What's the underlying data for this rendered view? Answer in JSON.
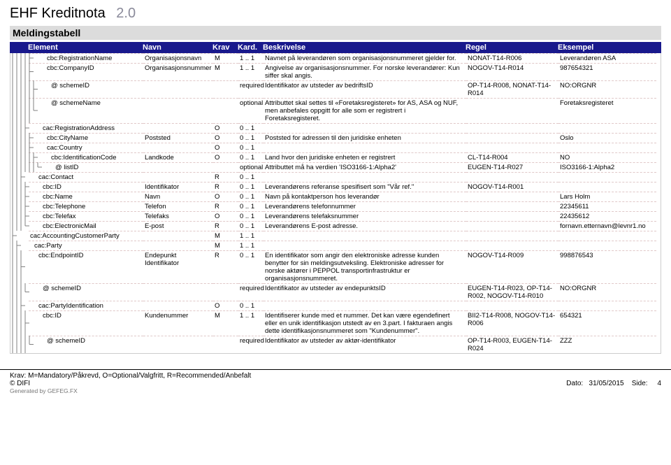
{
  "doc": {
    "title": "EHF Kreditnota",
    "version": "2.0"
  },
  "section": "Meldingstabell",
  "columns": {
    "element": "Element",
    "navn": "Navn",
    "krav": "Krav",
    "kard": "Kard.",
    "besk": "Beskrivelse",
    "regel": "Regel",
    "eks": "Eksempel"
  },
  "rows": [
    {
      "indent": 4,
      "element": "cbc:RegistrationName",
      "navn": "Organisasjonsnavn",
      "krav": "M",
      "kard": "1 .. 1",
      "besk": "Navnet på leverandøren som organisasjonsnummeret gjelder for.",
      "regel": "NONAT-T14-R006",
      "eks": "Leverandøren ASA"
    },
    {
      "indent": 4,
      "element": "cbc:CompanyID",
      "navn": "Organisasjonsnummer",
      "krav": "M",
      "kard": "1 .. 1",
      "besk": "Angivelse av organisasjonsnummer. For norske leverandører: Kun siffer skal angis.",
      "regel": "NOGOV-T14-R014",
      "eks": "987654321"
    },
    {
      "indent": 5,
      "element": "@ schemeID",
      "navn": "",
      "krav": "",
      "kard": "required",
      "besk": "Identifikator av utsteder av bedriftsID",
      "regel": "OP-T14-R008, NONAT-T14-R014",
      "eks": "NO:ORGNR"
    },
    {
      "indent": 5,
      "element": "@ schemeName",
      "navn": "",
      "krav": "",
      "kard": "optional",
      "besk": "Attributtet skal settes til «Foretaksregisteret» for AS, ASA og NUF, men anbefales oppgitt for alle som er registrert i Foretaksregisteret.",
      "regel": "",
      "eks": "Foretaksregisteret"
    },
    {
      "indent": 3,
      "element": "cac:RegistrationAddress",
      "navn": "",
      "krav": "O",
      "kard": "0 .. 1",
      "besk": "",
      "regel": "",
      "eks": ""
    },
    {
      "indent": 4,
      "element": "cbc:CityName",
      "navn": "Poststed",
      "krav": "O",
      "kard": "0 .. 1",
      "besk": "Poststed for adressen til den juridiske enheten",
      "regel": "",
      "eks": "Oslo"
    },
    {
      "indent": 4,
      "element": "cac:Country",
      "navn": "",
      "krav": "O",
      "kard": "0 .. 1",
      "besk": "",
      "regel": "",
      "eks": ""
    },
    {
      "indent": 5,
      "element": "cbc:IdentificationCode",
      "navn": "Landkode",
      "krav": "O",
      "kard": "0 .. 1",
      "besk": "Land hvor den juridiske enheten er registrert",
      "regel": "CL-T14-R004",
      "eks": "NO"
    },
    {
      "indent": 6,
      "element": "@ listID",
      "navn": "",
      "krav": "",
      "kard": "optional",
      "besk": "Attributtet må ha verdien 'ISO3166-1:Alpha2'",
      "regel": "EUGEN-T14-R027",
      "eks": "ISO3166-1:Alpha2"
    },
    {
      "indent": 2,
      "element": "cac:Contact",
      "navn": "",
      "krav": "R",
      "kard": "0 .. 1",
      "besk": "",
      "regel": "",
      "eks": ""
    },
    {
      "indent": 3,
      "element": "cbc:ID",
      "navn": "Identifikator",
      "krav": "R",
      "kard": "0 .. 1",
      "besk": "Leverandørens referanse spesifisert som \"Vår ref.\"",
      "regel": "NOGOV-T14-R001",
      "eks": ""
    },
    {
      "indent": 3,
      "element": "cbc:Name",
      "navn": "Navn",
      "krav": "O",
      "kard": "0 .. 1",
      "besk": "Navn på kontaktperson hos leverandør",
      "regel": "",
      "eks": "Lars Holm"
    },
    {
      "indent": 3,
      "element": "cbc:Telephone",
      "navn": "Telefon",
      "krav": "R",
      "kard": "0 .. 1",
      "besk": "Leverandørens telefonnummer",
      "regel": "",
      "eks": "22345611"
    },
    {
      "indent": 3,
      "element": "cbc:Telefax",
      "navn": "Telefaks",
      "krav": "O",
      "kard": "0 .. 1",
      "besk": "Leverandørens telefaksnummer",
      "regel": "",
      "eks": "22435612"
    },
    {
      "indent": 3,
      "element": "cbc:ElectronicMail",
      "navn": "E-post",
      "krav": "R",
      "kard": "0 .. 1",
      "besk": "Leverandørens E-post adresse.",
      "regel": "",
      "eks": "fornavn.etternavn@levnr1.no"
    },
    {
      "indent": 0,
      "element": "cac:AccountingCustomerParty",
      "navn": "",
      "krav": "M",
      "kard": "1 .. 1",
      "besk": "",
      "regel": "",
      "eks": ""
    },
    {
      "indent": 1,
      "element": "cac:Party",
      "navn": "",
      "krav": "M",
      "kard": "1 .. 1",
      "besk": "",
      "regel": "",
      "eks": ""
    },
    {
      "indent": 2,
      "element": "cbc:EndpointID",
      "navn": "Endepunkt Identifikator",
      "krav": "R",
      "kard": "0 .. 1",
      "besk": "En identifikator som angir den elektroniske adresse kunden benytter for sin meldingsutveksling.   Elektroniske adresser for norske aktører i PEPPOL transportinfrastruktur er organisasjonsnummeret.",
      "regel": "NOGOV-T14-R009",
      "eks": "998876543"
    },
    {
      "indent": 3,
      "element": "@ schemeID",
      "navn": "",
      "krav": "",
      "kard": "required",
      "besk": "Identifikator av utsteder av endepunktsID",
      "regel": "EUGEN-T14-R023, OP-T14-R002, NOGOV-T14-R010",
      "eks": "NO:ORGNR"
    },
    {
      "indent": 2,
      "element": "cac:PartyIdentification",
      "navn": "",
      "krav": "O",
      "kard": "0 .. 1",
      "besk": "",
      "regel": "",
      "eks": ""
    },
    {
      "indent": 3,
      "element": "cbc:ID",
      "navn": "Kundenummer",
      "krav": "M",
      "kard": "1 .. 1",
      "besk": "Identifiserer kunde med et nummer. Det kan være egendefinert eller en unik identifikasjon utstedt av en 3.part. I fakturaen angis dette identifikasjonsnummeret som \"Kundenummer\".",
      "regel": "BII2-T14-R008, NOGOV-T14-R006",
      "eks": "654321"
    },
    {
      "indent": 4,
      "element": "@ schemeID",
      "navn": "",
      "krav": "",
      "kard": "required",
      "besk": "Identifikator av utsteder av aktør-identifikator",
      "regel": "OP-T14-R003, EUGEN-T14-R024",
      "eks": "ZZZ"
    }
  ],
  "footer": {
    "krav": "Krav: M=Mandatory/Påkrevd, O=Optional/Valgfritt, R=Recommended/Anbefalt",
    "copy": "© DIFI",
    "gen": "Generated by GEFEG.FX",
    "dato_label": "Dato:",
    "dato": "31/05/2015",
    "side_label": "Side:",
    "side": "4"
  },
  "style": {
    "header_bg": "#19198c",
    "header_fg": "#ffffff",
    "section_bg": "#dcdcdc",
    "border_dash": "#e0c8c8",
    "tree_color": "#808080"
  }
}
